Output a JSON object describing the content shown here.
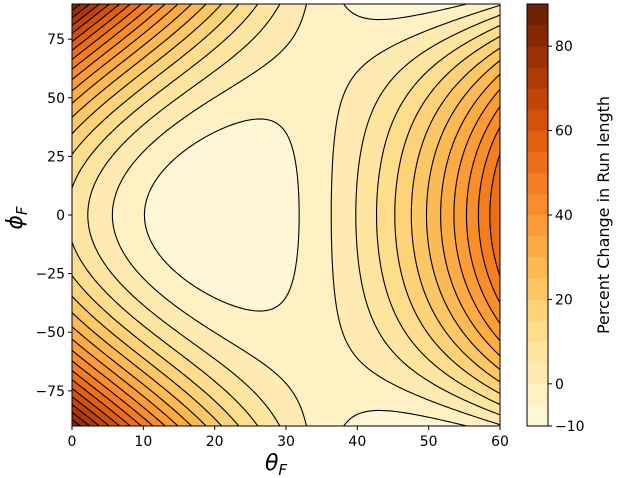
{
  "chart_data": {
    "type": "contour",
    "xlabel": {
      "symbol": "θ",
      "subscript": "F"
    },
    "ylabel": {
      "symbol": "ϕ",
      "subscript": "F"
    },
    "xlim": [
      0,
      60
    ],
    "ylim": [
      -90,
      90
    ],
    "x_ticks": [
      0,
      10,
      20,
      30,
      40,
      50,
      60
    ],
    "y_ticks": [
      -75,
      -50,
      -25,
      0,
      25,
      50,
      75
    ],
    "x_tick_labels": [
      "0",
      "10",
      "20",
      "30",
      "40",
      "50",
      "60"
    ],
    "y_tick_labels": [
      "−75",
      "−50",
      "−25",
      "0",
      "25",
      "50",
      "75"
    ],
    "colorbar": {
      "label": "Percent Change in Run length",
      "range": [
        -10,
        90
      ],
      "levels": [
        -10,
        -5,
        0,
        5,
        10,
        15,
        20,
        25,
        30,
        35,
        40,
        45,
        50,
        55,
        60,
        65,
        70,
        75,
        80,
        85,
        90
      ],
      "ticks": [
        -10,
        0,
        20,
        40,
        60,
        80
      ],
      "tick_labels": [
        "−10",
        "0",
        "20",
        "40",
        "60",
        "80"
      ],
      "colors": [
        "#fff6d6",
        "#fff1c4",
        "#ffebb2",
        "#fee5a0",
        "#fedd8c",
        "#fed278",
        "#fec766",
        "#fdb954",
        "#fdab43",
        "#fb9c36",
        "#f88d2b",
        "#f27e21",
        "#eb6f18",
        "#e06010",
        "#d2520b",
        "#c14507",
        "#ae3a05",
        "#9a3004",
        "#852904",
        "#6e2204"
      ]
    },
    "center": {
      "theta": 21,
      "phi": 0,
      "min_value": -10
    },
    "contour_lines": true
  }
}
